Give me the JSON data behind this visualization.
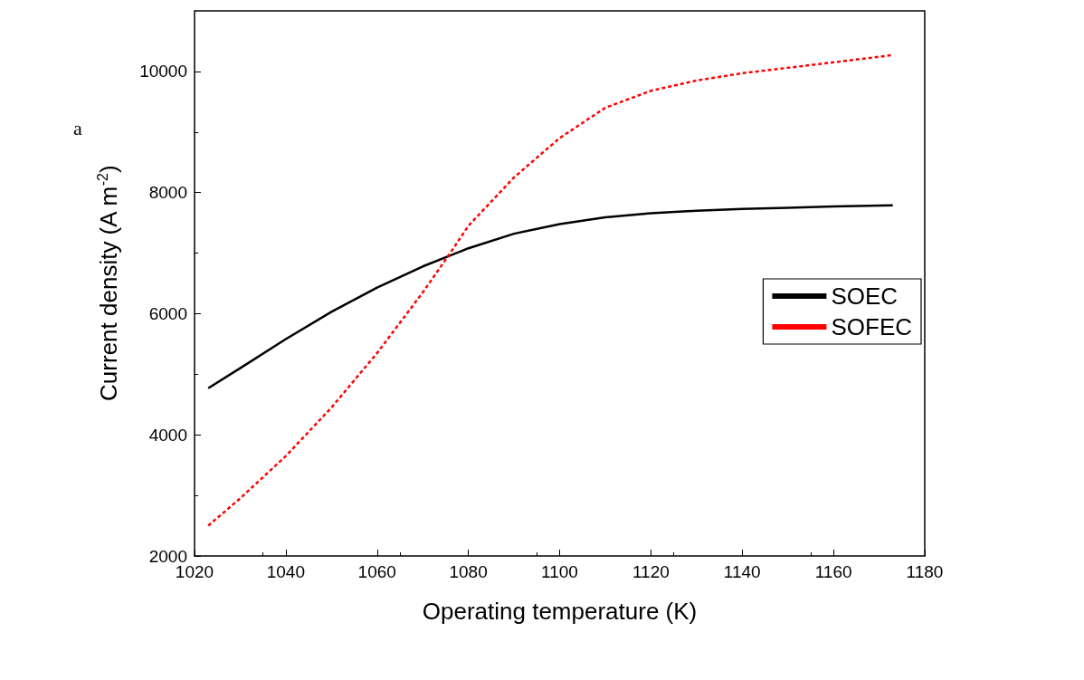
{
  "chart_data": {
    "type": "line",
    "xlabel": "Operating temperature (K)",
    "ylabel": "Current density (A m$^{-2}$)",
    "annotations": [
      "a"
    ],
    "xlim": [
      1020,
      1180
    ],
    "xticks": [
      1020,
      1040,
      1060,
      1080,
      1100,
      1120,
      1140,
      1160,
      1180
    ],
    "ylim": [
      2000,
      11000
    ],
    "yticks": [
      2000,
      4000,
      6000,
      8000,
      10000
    ],
    "grid": false,
    "legend": "right",
    "marker": "none",
    "series": [
      {
        "name": "SOEC",
        "color": "#000000",
        "line_style": "solid",
        "x": [
          1023,
          1030,
          1040,
          1050,
          1060,
          1070,
          1080,
          1090,
          1100,
          1110,
          1120,
          1130,
          1140,
          1150,
          1160,
          1173
        ],
        "values": [
          4770,
          5100,
          5580,
          6030,
          6430,
          6780,
          7080,
          7320,
          7480,
          7590,
          7660,
          7700,
          7730,
          7750,
          7770,
          7790
        ]
      },
      {
        "name": "SOFEC",
        "color": "#ff0000",
        "line_style": "dashed",
        "x": [
          1023,
          1030,
          1040,
          1050,
          1060,
          1070,
          1076,
          1080,
          1090,
          1100,
          1110,
          1120,
          1130,
          1140,
          1150,
          1160,
          1173
        ],
        "values": [
          2500,
          2950,
          3650,
          4450,
          5350,
          6350,
          7000,
          7450,
          8250,
          8900,
          9400,
          9680,
          9850,
          9970,
          10060,
          10150,
          10270
        ]
      }
    ]
  }
}
